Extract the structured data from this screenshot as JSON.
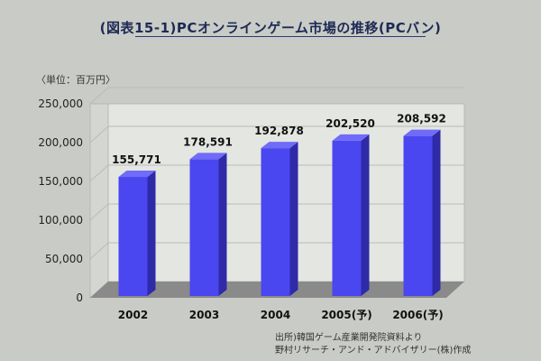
{
  "chart_data": {
    "type": "bar",
    "title": "(図表15-1)PCオンラインゲーム市場の推移(PCバン)",
    "unit_label": "〈単位：百万円〉",
    "categories": [
      "2002",
      "2003",
      "2004",
      "2005(予)",
      "2006(予)"
    ],
    "values": [
      155771,
      178591,
      192878,
      202520,
      208592
    ],
    "data_labels": [
      "155,771",
      "178,591",
      "192,878",
      "202,520",
      "208,592"
    ],
    "ylim": [
      0,
      250000
    ],
    "yticks": [
      0,
      50000,
      100000,
      150000,
      200000,
      250000
    ],
    "ytick_labels": [
      "0",
      "50,000",
      "100,000",
      "150,000",
      "200,000",
      "250,000"
    ],
    "grid": true,
    "colors": {
      "bar_front": "#4a46f0",
      "bar_side": "#2e2aa8",
      "bar_top": "#6f6cf8",
      "wall": "#e4e6e2",
      "floor": "#8a8a8a"
    }
  },
  "source": {
    "line1": "出所)韓国ゲーム産業開発院資料より",
    "line2": "野村リサーチ・アンド・アドバイザリー(株)作成"
  }
}
